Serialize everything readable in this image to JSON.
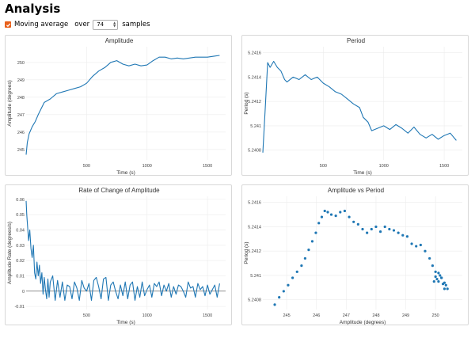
{
  "page": {
    "title": "Analysis",
    "moving_average_label": "Moving average",
    "moving_average_checked": true,
    "over_label": "over",
    "samples_value": "74",
    "samples_label": "samples"
  },
  "colors": {
    "accent": "#e8601b",
    "line": "#1f77b4",
    "grid": "#ececec"
  },
  "chart_data": [
    {
      "type": "line",
      "title": "Amplitude",
      "xlabel": "Time (s)",
      "ylabel": "Amplitude (degrees)",
      "xlim": [
        0,
        1650
      ],
      "ylim": [
        244.4,
        250.9
      ],
      "xticks": [
        500,
        1000,
        1500
      ],
      "yticks": [
        245,
        246,
        247,
        248,
        249,
        250
      ],
      "yticklabels": [
        "245",
        "246",
        "247",
        "248",
        "249",
        "250"
      ],
      "series": [
        {
          "x": [
            0,
            10,
            25,
            50,
            75,
            100,
            150,
            200,
            250,
            300,
            350,
            400,
            450,
            500,
            550,
            600,
            650,
            700,
            750,
            800,
            850,
            900,
            950,
            1000,
            1050,
            1100,
            1150,
            1200,
            1250,
            1300,
            1350,
            1400,
            1450,
            1500,
            1550,
            1600
          ],
          "y": [
            244.7,
            245.4,
            245.9,
            246.3,
            246.6,
            247.0,
            247.7,
            247.9,
            248.2,
            248.3,
            248.4,
            248.5,
            248.6,
            248.8,
            249.2,
            249.5,
            249.7,
            250.0,
            250.1,
            249.9,
            249.8,
            249.9,
            249.8,
            249.85,
            250.1,
            250.3,
            250.3,
            250.2,
            250.25,
            250.2,
            250.25,
            250.3,
            250.3,
            250.3,
            250.35,
            250.4
          ]
        }
      ]
    },
    {
      "type": "line",
      "title": "Period",
      "xlabel": "Time (s)",
      "ylabel": "Period (s)",
      "xlim": [
        0,
        1650
      ],
      "ylim": [
        5.24072,
        5.24165
      ],
      "xticks": [
        500,
        1000,
        1500
      ],
      "yticks": [
        5.2408,
        5.241,
        5.2412,
        5.2414,
        5.2416
      ],
      "yticklabels": [
        "5.2408",
        "5.241",
        "5.2412",
        "5.2414",
        "5.2416"
      ],
      "series": [
        {
          "x": [
            0,
            20,
            40,
            60,
            90,
            120,
            150,
            180,
            200,
            250,
            300,
            350,
            400,
            450,
            500,
            550,
            600,
            650,
            700,
            750,
            800,
            830,
            870,
            900,
            950,
            1000,
            1050,
            1100,
            1150,
            1200,
            1250,
            1300,
            1350,
            1400,
            1450,
            1500,
            1550,
            1600
          ],
          "y": [
            5.24078,
            5.24115,
            5.24152,
            5.24148,
            5.24153,
            5.24148,
            5.24145,
            5.24138,
            5.24136,
            5.2414,
            5.24138,
            5.24142,
            5.24138,
            5.2414,
            5.24135,
            5.24132,
            5.24128,
            5.24126,
            5.24122,
            5.24118,
            5.24115,
            5.24107,
            5.24103,
            5.24096,
            5.24098,
            5.241,
            5.24097,
            5.24101,
            5.24098,
            5.24094,
            5.24099,
            5.24093,
            5.2409,
            5.24093,
            5.24089,
            5.24092,
            5.24094,
            5.24088
          ]
        }
      ]
    },
    {
      "type": "line",
      "title": "Rate of Change of Amplitude",
      "xlabel": "Time (s)",
      "ylabel": "Amplitude Rate (degrees/s)",
      "xlim": [
        0,
        1650
      ],
      "ylim": [
        -0.012,
        0.062
      ],
      "xticks": [
        500,
        1000,
        1500
      ],
      "yticks": [
        -0.01,
        0,
        0.01,
        0.02,
        0.03,
        0.04,
        0.05,
        0.06
      ],
      "yticklabels": [
        "-0.01",
        "0",
        "0.01",
        "0.02",
        "0.03",
        "0.04",
        "0.05",
        "0.06"
      ],
      "series": [
        {
          "x": [
            0,
            5,
            10,
            20,
            30,
            40,
            50,
            60,
            70,
            80,
            90,
            100,
            110,
            120,
            130,
            140,
            150,
            160,
            170,
            180,
            190,
            200,
            220,
            240,
            260,
            280,
            300,
            320,
            340,
            360,
            380,
            400,
            420,
            440,
            460,
            480,
            500,
            520,
            540,
            560,
            580,
            600,
            620,
            640,
            660,
            680,
            700,
            720,
            740,
            760,
            780,
            800,
            820,
            840,
            860,
            880,
            900,
            920,
            940,
            960,
            980,
            1000,
            1020,
            1040,
            1060,
            1080,
            1100,
            1120,
            1140,
            1160,
            1180,
            1200,
            1220,
            1240,
            1260,
            1280,
            1300,
            1320,
            1340,
            1360,
            1380,
            1400,
            1420,
            1440,
            1460,
            1480,
            1500,
            1520,
            1540,
            1560,
            1580,
            1600
          ],
          "y": [
            0.059,
            0.05,
            0.045,
            0.033,
            0.04,
            0.028,
            0.022,
            0.03,
            0.012,
            0.008,
            0.019,
            0.01,
            0.017,
            0.005,
            0.012,
            -0.002,
            0.009,
            0.001,
            -0.005,
            0.008,
            -0.004,
            0.006,
            0.01,
            -0.006,
            0.007,
            -0.004,
            0.006,
            -0.006,
            0.004,
            0.003,
            -0.005,
            0.006,
            0.002,
            -0.006,
            0.007,
            0.002,
            0.0,
            0.005,
            -0.006,
            0.007,
            0.009,
            0.003,
            -0.005,
            0.008,
            0.009,
            -0.006,
            0.004,
            0.006,
            0.0,
            -0.005,
            0.004,
            -0.003,
            0.006,
            -0.005,
            0.004,
            0.006,
            -0.006,
            0.003,
            -0.004,
            0.006,
            -0.003,
            0.001,
            0.004,
            -0.004,
            0.005,
            0.003,
            0.006,
            -0.003,
            0.004,
            0.0,
            0.005,
            -0.004,
            0.003,
            -0.002,
            0.004,
            0.003,
            0.0,
            -0.004,
            0.006,
            0.002,
            0.003,
            -0.004,
            0.005,
            0.001,
            0.003,
            -0.003,
            0.004,
            -0.002,
            0.001,
            0.004,
            -0.004,
            0.005
          ]
        }
      ]
    },
    {
      "type": "scatter",
      "title": "Amplitude vs Period",
      "xlabel": "Amplitude (degrees)",
      "ylabel": "Period (s)",
      "xlim": [
        244.2,
        250.9
      ],
      "ylim": [
        5.24072,
        5.24165
      ],
      "xticks": [
        245,
        246,
        247,
        248,
        249,
        250
      ],
      "xticklabels": [
        "245",
        "246",
        "247",
        "248",
        "249",
        "250"
      ],
      "yticks": [
        5.2408,
        5.241,
        5.2412,
        5.2414,
        5.2416
      ],
      "yticklabels": [
        "5.2408",
        "5.241",
        "5.2412",
        "5.2414",
        "5.2416"
      ],
      "series": [
        {
          "x": [
            244.6,
            244.75,
            244.9,
            245.05,
            245.2,
            245.35,
            245.5,
            245.62,
            245.74,
            245.86,
            245.98,
            246.08,
            246.18,
            246.28,
            246.38,
            246.5,
            246.65,
            246.8,
            246.95,
            247.1,
            247.25,
            247.4,
            247.55,
            247.7,
            247.85,
            248.0,
            248.15,
            248.3,
            248.45,
            248.6,
            248.75,
            248.9,
            249.05,
            249.2,
            249.35,
            249.5,
            249.65,
            249.8,
            249.9,
            250.0,
            250.05,
            250.1,
            250.15,
            250.2,
            250.25,
            250.3,
            250.35,
            250.4,
            249.95,
            250.0,
            250.1,
            250.2,
            250.3
          ],
          "y": [
            5.24076,
            5.24082,
            5.24087,
            5.24092,
            5.24098,
            5.24103,
            5.24108,
            5.24114,
            5.24121,
            5.24128,
            5.24135,
            5.24143,
            5.24148,
            5.24153,
            5.24152,
            5.2415,
            5.24149,
            5.24152,
            5.24153,
            5.24148,
            5.24144,
            5.24142,
            5.24138,
            5.24135,
            5.24138,
            5.2414,
            5.24136,
            5.2414,
            5.24138,
            5.24137,
            5.24135,
            5.24133,
            5.24132,
            5.24126,
            5.24124,
            5.24125,
            5.2412,
            5.24114,
            5.24108,
            5.24103,
            5.24097,
            5.24095,
            5.241,
            5.24098,
            5.24093,
            5.24089,
            5.24092,
            5.24089,
            5.24095,
            5.24099,
            5.24102,
            5.24098,
            5.24094
          ]
        }
      ]
    }
  ]
}
